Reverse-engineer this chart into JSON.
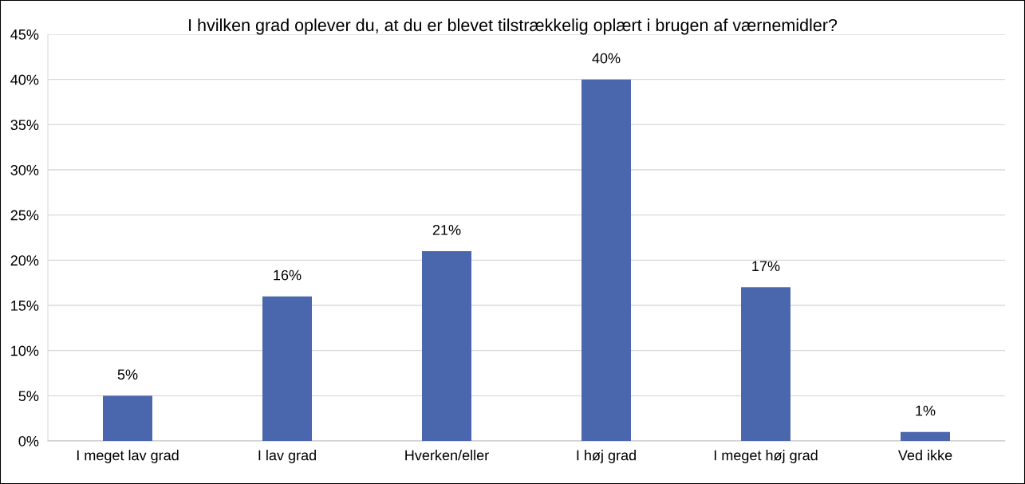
{
  "chart_data": {
    "type": "bar",
    "title": "I hvilken grad oplever du, at du er blevet tilstrækkelig oplært i brugen af værnemidler?",
    "categories": [
      "I meget lav grad",
      "I lav grad",
      "Hverken/eller",
      "I høj grad",
      "I meget høj grad",
      "Ved ikke"
    ],
    "values": [
      5,
      16,
      21,
      40,
      17,
      1
    ],
    "value_labels": [
      "5%",
      "16%",
      "21%",
      "40%",
      "17%",
      "1%"
    ],
    "color": "#4a66ac",
    "ylim": [
      0,
      45
    ],
    "yticks": [
      {
        "value": 0,
        "label": "0%"
      },
      {
        "value": 5,
        "label": "5%"
      },
      {
        "value": 10,
        "label": "10%"
      },
      {
        "value": 15,
        "label": "15%"
      },
      {
        "value": 20,
        "label": "20%"
      },
      {
        "value": 25,
        "label": "25%"
      },
      {
        "value": 30,
        "label": "30%"
      },
      {
        "value": 35,
        "label": "35%"
      },
      {
        "value": 40,
        "label": "40%"
      },
      {
        "value": 45,
        "label": "45%"
      }
    ],
    "grid": "y"
  }
}
